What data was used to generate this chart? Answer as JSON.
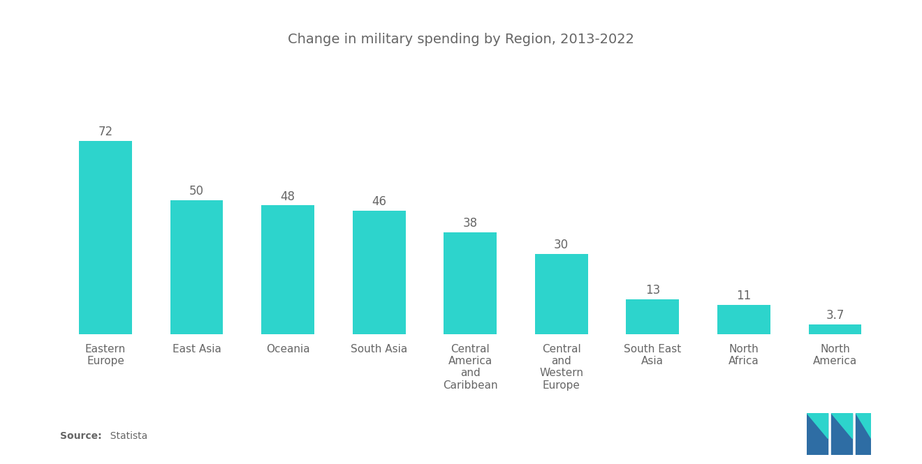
{
  "title": "Change in military spending by Region, 2013-2022",
  "categories": [
    "Eastern\nEurope",
    "East Asia",
    "Oceania",
    "South Asia",
    "Central\nAmerica\nand\nCaribbean",
    "Central\nand\nWestern\nEurope",
    "South East\nAsia",
    "North\nAfrica",
    "North\nAmerica"
  ],
  "values": [
    72,
    50,
    48,
    46,
    38,
    30,
    13,
    11,
    3.7
  ],
  "bar_color": "#2DD4CC",
  "background_color": "#ffffff",
  "text_color": "#666666",
  "title_fontsize": 14,
  "tick_fontsize": 11,
  "value_fontsize": 12,
  "source_bold": "Source:",
  "source_normal": "  Statista",
  "ylim": [
    0,
    90
  ],
  "logo_blue": "#2E6DA4",
  "logo_teal": "#2DD4CC"
}
